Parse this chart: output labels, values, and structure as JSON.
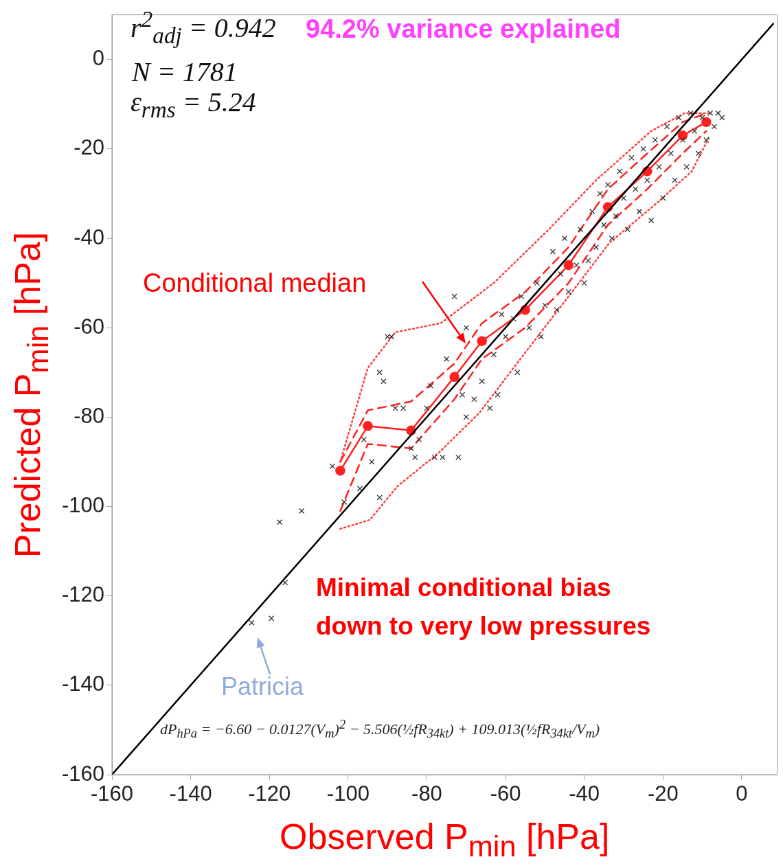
{
  "chart_data": {
    "type": "scatter",
    "xlabel": "Observed P$_{min}$ [hPa]",
    "ylabel": "Predicted P$_{min}$ [hPa]",
    "xlim": [
      -160,
      9
    ],
    "ylim": [
      -160,
      10
    ],
    "xticks": [
      -160,
      -140,
      -120,
      -100,
      -80,
      -60,
      -40,
      -20,
      0
    ],
    "yticks": [
      -160,
      -140,
      -120,
      -100,
      -80,
      -60,
      -40,
      -20,
      0
    ],
    "grid": false,
    "legend": false,
    "series": [
      {
        "type": "scatter",
        "color": "#333333",
        "marker": "cross",
        "x": [
          -124.5,
          -119.5,
          -116,
          -117.4,
          -111.8,
          -104,
          -101,
          -97,
          -96,
          -92,
          -94,
          -90,
          -89,
          -92,
          -91,
          -88,
          -86,
          -84,
          -83,
          -82,
          -80,
          -79,
          -78,
          -76,
          -75,
          -72,
          -73,
          -70,
          -71,
          -70,
          -68,
          -66,
          -64,
          -63,
          -62,
          -61,
          -60,
          -58,
          -57,
          -56,
          -54,
          -52,
          -51,
          -50,
          -48,
          -47,
          -46,
          -45,
          -44,
          -42,
          -41,
          -40,
          -39,
          -38,
          -37,
          -36,
          -35,
          -34,
          -33,
          -32,
          -31,
          -30,
          -29,
          -28,
          -27,
          -26,
          -25,
          -24,
          -23,
          -22,
          -21,
          -20,
          -19,
          -18,
          -17,
          -16,
          -15,
          -14,
          -13,
          -12,
          -11,
          -10,
          -9,
          -8,
          -7,
          -6,
          -5
        ],
        "values": [
          -126,
          -125,
          -117,
          -103.5,
          -101,
          -91,
          -99,
          -96,
          -85,
          -98,
          -90,
          -62,
          -62,
          -70,
          -72,
          -78,
          -78,
          -87,
          -89,
          -85,
          -78,
          -73,
          -89,
          -89,
          -67,
          -89,
          -53,
          -60,
          -75,
          -80,
          -76,
          -72,
          -78,
          -66,
          -75,
          -57,
          -62,
          -58,
          -70,
          -53,
          -60,
          -50,
          -62,
          -55,
          -43,
          -56,
          -48,
          -40,
          -52,
          -46,
          -38,
          -50,
          -45,
          -34,
          -42,
          -30,
          -37,
          -28,
          -40,
          -35,
          -25,
          -31,
          -38,
          -22,
          -29,
          -34,
          -20,
          -27,
          -36,
          -18,
          -24,
          -31,
          -15,
          -21,
          -27,
          -13,
          -18,
          -24,
          -12,
          -16,
          -21,
          -13,
          -18,
          -12,
          -15,
          -12,
          -13
        ]
      },
      {
        "type": "line",
        "color": "#000000",
        "marker": "none",
        "line_style": "solid",
        "x": [
          -160,
          8
        ],
        "values": [
          -160,
          8
        ]
      },
      {
        "type": "line",
        "color": "#ff2020",
        "marker": "circle",
        "line_style": "solid",
        "x": [
          -102,
          -95,
          -84,
          -73,
          -66,
          -55,
          -44,
          -34,
          -24,
          -15,
          -9
        ],
        "values": [
          -92,
          -82,
          -83,
          -71,
          -63,
          -56,
          -46,
          -33,
          -25,
          -17,
          -14
        ]
      },
      {
        "type": "line",
        "color": "#ff2020",
        "marker": "none",
        "line_style": "dashed",
        "x": [
          -102,
          -95,
          -84,
          -73,
          -66,
          -55,
          -44,
          -34,
          -24,
          -15,
          -9
        ],
        "values": [
          -90,
          -78.5,
          -76.5,
          -68,
          -59,
          -52,
          -42,
          -29,
          -21,
          -14,
          -12
        ]
      },
      {
        "type": "line",
        "color": "#ff2020",
        "marker": "none",
        "line_style": "dashed",
        "x": [
          -102,
          -95,
          -84,
          -73,
          -66,
          -55,
          -44,
          -34,
          -24,
          -15,
          -9
        ],
        "values": [
          -101,
          -86,
          -87,
          -76,
          -67,
          -60,
          -50,
          -37,
          -29,
          -21,
          -16
        ]
      },
      {
        "type": "line",
        "color": "#ff4040",
        "marker": "none",
        "line_style": "dotted",
        "x": [
          -102,
          -95,
          -88,
          -76.5,
          -63,
          -49,
          -37,
          -23,
          -14.5,
          -8.5
        ],
        "values": [
          -90,
          -69,
          -61,
          -59,
          -50,
          -38,
          -27,
          -16,
          -12,
          -12
        ]
      },
      {
        "type": "line",
        "color": "#ff4040",
        "marker": "none",
        "line_style": "dotted",
        "x": [
          -102,
          -94.5,
          -87.5,
          -77,
          -66.6,
          -56,
          -44,
          -33.6,
          -21.4,
          -12.7,
          -8.3
        ],
        "values": [
          -105,
          -103,
          -95.5,
          -88,
          -79,
          -66.7,
          -53,
          -41,
          -32,
          -25,
          -17.4
        ]
      }
    ],
    "annotations": [
      "r$^{2}$$_{adj}$ = 0.942",
      "94.2% variance explained",
      "N = 1781",
      "ε$_{rms}$ = 5.24",
      "Conditional median",
      "Minimal conditional bias down to very low pressures",
      "Patricia",
      "dP$_{hPa}$ = −6.60 − 0.0127(V$_{m}$)$^{2}$ − 5.506(½fR$_{34kt}$) + 109.013(½fR$_{34kt}$/V$_{m}$)"
    ]
  }
}
